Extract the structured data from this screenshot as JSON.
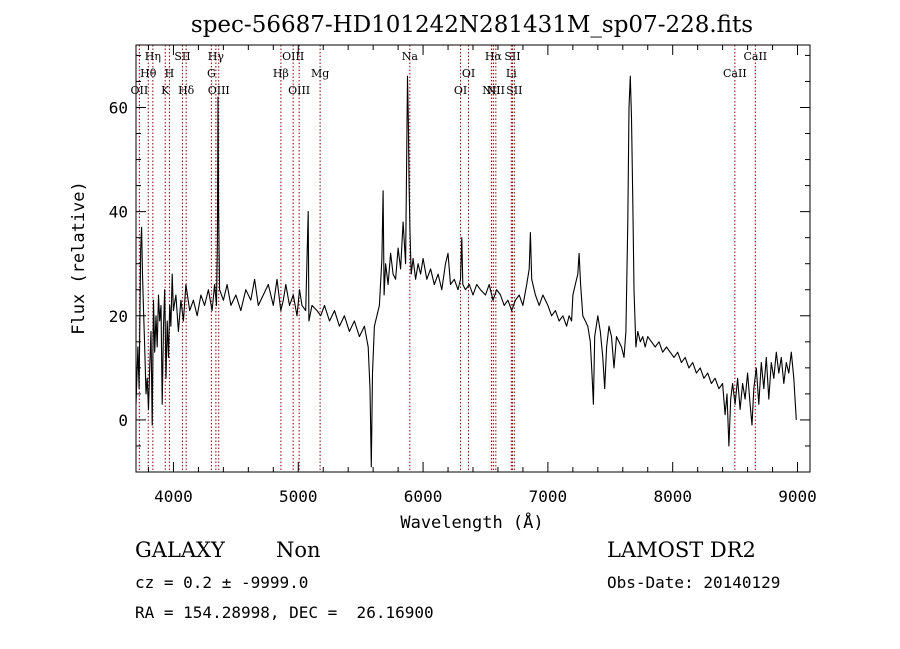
{
  "chart_data": {
    "type": "line",
    "title": "spec-56687-HD101242N281431M_sp07-228.fits",
    "xlabel": "Wavelength (Å)",
    "ylabel": "Flux (relative)",
    "xlim": [
      3700,
      9100
    ],
    "ylim": [
      -10,
      72
    ],
    "xticks": [
      4000,
      5000,
      6000,
      7000,
      8000,
      9000
    ],
    "yticks": [
      0,
      20,
      40,
      60
    ],
    "grid": false,
    "legend": "none",
    "line_color": "#000000",
    "marker_color": "#8b0000",
    "series": [
      {
        "values": [
          [
            3700,
            3
          ],
          [
            3715,
            14
          ],
          [
            3725,
            6
          ],
          [
            3738,
            33
          ],
          [
            3745,
            37
          ],
          [
            3752,
            28
          ],
          [
            3762,
            20
          ],
          [
            3770,
            14
          ],
          [
            3780,
            5
          ],
          [
            3790,
            8
          ],
          [
            3800,
            2
          ],
          [
            3810,
            10
          ],
          [
            3820,
            17
          ],
          [
            3830,
            -1
          ],
          [
            3840,
            23
          ],
          [
            3850,
            13
          ],
          [
            3860,
            20
          ],
          [
            3870,
            14
          ],
          [
            3880,
            24
          ],
          [
            3890,
            19
          ],
          [
            3900,
            22
          ],
          [
            3910,
            3
          ],
          [
            3920,
            18
          ],
          [
            3930,
            25
          ],
          [
            3940,
            8
          ],
          [
            3950,
            19
          ],
          [
            3960,
            12
          ],
          [
            3970,
            22
          ],
          [
            3980,
            18
          ],
          [
            3990,
            28
          ],
          [
            4000,
            21
          ],
          [
            4020,
            24
          ],
          [
            4040,
            17
          ],
          [
            4060,
            23
          ],
          [
            4080,
            19
          ],
          [
            4100,
            26
          ],
          [
            4130,
            21
          ],
          [
            4160,
            23
          ],
          [
            4190,
            20
          ],
          [
            4220,
            24
          ],
          [
            4250,
            22
          ],
          [
            4280,
            25
          ],
          [
            4310,
            21
          ],
          [
            4330,
            26
          ],
          [
            4345,
            22
          ],
          [
            4352,
            34
          ],
          [
            4357,
            62
          ],
          [
            4362,
            40
          ],
          [
            4370,
            25
          ],
          [
            4400,
            23
          ],
          [
            4430,
            26
          ],
          [
            4460,
            22
          ],
          [
            4500,
            24
          ],
          [
            4540,
            21
          ],
          [
            4580,
            25
          ],
          [
            4620,
            23
          ],
          [
            4650,
            27
          ],
          [
            4680,
            22
          ],
          [
            4720,
            24
          ],
          [
            4760,
            26
          ],
          [
            4800,
            22
          ],
          [
            4830,
            27
          ],
          [
            4860,
            21
          ],
          [
            4880,
            23
          ],
          [
            4900,
            26
          ],
          [
            4930,
            22
          ],
          [
            4960,
            24
          ],
          [
            4990,
            20
          ],
          [
            5010,
            25
          ],
          [
            5030,
            22
          ],
          [
            5060,
            21
          ],
          [
            5080,
            40
          ],
          [
            5085,
            19
          ],
          [
            5110,
            22
          ],
          [
            5150,
            21
          ],
          [
            5180,
            20
          ],
          [
            5210,
            22
          ],
          [
            5250,
            19
          ],
          [
            5290,
            21
          ],
          [
            5330,
            18
          ],
          [
            5370,
            20
          ],
          [
            5410,
            17
          ],
          [
            5450,
            19
          ],
          [
            5490,
            16
          ],
          [
            5530,
            18
          ],
          [
            5560,
            14
          ],
          [
            5575,
            6
          ],
          [
            5585,
            -9
          ],
          [
            5595,
            9
          ],
          [
            5610,
            18
          ],
          [
            5630,
            20
          ],
          [
            5650,
            22
          ],
          [
            5670,
            31
          ],
          [
            5680,
            44
          ],
          [
            5688,
            24
          ],
          [
            5700,
            30
          ],
          [
            5720,
            26
          ],
          [
            5740,
            32
          ],
          [
            5760,
            28
          ],
          [
            5780,
            27
          ],
          [
            5800,
            33
          ],
          [
            5820,
            29
          ],
          [
            5840,
            38
          ],
          [
            5860,
            30
          ],
          [
            5875,
            66
          ],
          [
            5882,
            58
          ],
          [
            5888,
            45
          ],
          [
            5895,
            36
          ],
          [
            5905,
            28
          ],
          [
            5920,
            31
          ],
          [
            5940,
            27
          ],
          [
            5960,
            30
          ],
          [
            5980,
            28
          ],
          [
            6000,
            31
          ],
          [
            6030,
            27
          ],
          [
            6060,
            29
          ],
          [
            6090,
            26
          ],
          [
            6120,
            28
          ],
          [
            6150,
            25
          ],
          [
            6180,
            30
          ],
          [
            6200,
            32
          ],
          [
            6220,
            26
          ],
          [
            6250,
            27
          ],
          [
            6280,
            25
          ],
          [
            6300,
            27
          ],
          [
            6310,
            35
          ],
          [
            6318,
            26
          ],
          [
            6340,
            25
          ],
          [
            6370,
            26
          ],
          [
            6400,
            24
          ],
          [
            6430,
            26
          ],
          [
            6460,
            25
          ],
          [
            6500,
            24
          ],
          [
            6530,
            26
          ],
          [
            6560,
            23
          ],
          [
            6590,
            25
          ],
          [
            6620,
            24
          ],
          [
            6650,
            22
          ],
          [
            6680,
            23
          ],
          [
            6710,
            21
          ],
          [
            6740,
            23
          ],
          [
            6770,
            24
          ],
          [
            6800,
            22
          ],
          [
            6830,
            26
          ],
          [
            6850,
            29
          ],
          [
            6860,
            36
          ],
          [
            6870,
            27
          ],
          [
            6900,
            24
          ],
          [
            6930,
            22
          ],
          [
            6960,
            24
          ],
          [
            7000,
            22
          ],
          [
            7030,
            20
          ],
          [
            7060,
            21
          ],
          [
            7090,
            19
          ],
          [
            7120,
            20
          ],
          [
            7150,
            18
          ],
          [
            7170,
            20
          ],
          [
            7190,
            19
          ],
          [
            7200,
            24
          ],
          [
            7220,
            26
          ],
          [
            7240,
            28
          ],
          [
            7250,
            32
          ],
          [
            7262,
            26
          ],
          [
            7280,
            20
          ],
          [
            7300,
            19
          ],
          [
            7320,
            18
          ],
          [
            7340,
            15
          ],
          [
            7355,
            8
          ],
          [
            7365,
            3
          ],
          [
            7375,
            16
          ],
          [
            7400,
            20
          ],
          [
            7420,
            17
          ],
          [
            7440,
            12
          ],
          [
            7455,
            6
          ],
          [
            7470,
            14
          ],
          [
            7490,
            18
          ],
          [
            7510,
            16
          ],
          [
            7530,
            10
          ],
          [
            7550,
            16
          ],
          [
            7570,
            15
          ],
          [
            7590,
            14
          ],
          [
            7610,
            12
          ],
          [
            7625,
            17
          ],
          [
            7640,
            38
          ],
          [
            7650,
            60
          ],
          [
            7660,
            66
          ],
          [
            7670,
            58
          ],
          [
            7680,
            42
          ],
          [
            7690,
            25
          ],
          [
            7705,
            14
          ],
          [
            7720,
            17
          ],
          [
            7740,
            15
          ],
          [
            7760,
            16
          ],
          [
            7780,
            14
          ],
          [
            7800,
            16
          ],
          [
            7830,
            15
          ],
          [
            7860,
            14
          ],
          [
            7890,
            15
          ],
          [
            7920,
            13
          ],
          [
            7950,
            14
          ],
          [
            7980,
            13
          ],
          [
            8010,
            12
          ],
          [
            8040,
            13
          ],
          [
            8070,
            11
          ],
          [
            8100,
            12
          ],
          [
            8130,
            10
          ],
          [
            8160,
            11
          ],
          [
            8190,
            9
          ],
          [
            8220,
            10
          ],
          [
            8250,
            8
          ],
          [
            8280,
            9
          ],
          [
            8310,
            7
          ],
          [
            8340,
            8
          ],
          [
            8370,
            6
          ],
          [
            8400,
            7
          ],
          [
            8420,
            1
          ],
          [
            8435,
            5
          ],
          [
            8450,
            -5
          ],
          [
            8465,
            4
          ],
          [
            8480,
            7
          ],
          [
            8500,
            3
          ],
          [
            8520,
            8
          ],
          [
            8540,
            2
          ],
          [
            8560,
            7
          ],
          [
            8580,
            4
          ],
          [
            8600,
            9
          ],
          [
            8620,
            3
          ],
          [
            8635,
            -1
          ],
          [
            8650,
            6
          ],
          [
            8670,
            10
          ],
          [
            8690,
            3
          ],
          [
            8710,
            11
          ],
          [
            8730,
            6
          ],
          [
            8750,
            12
          ],
          [
            8770,
            4
          ],
          [
            8790,
            11
          ],
          [
            8810,
            8
          ],
          [
            8830,
            13
          ],
          [
            8850,
            9
          ],
          [
            8870,
            12
          ],
          [
            8890,
            7
          ],
          [
            8910,
            11
          ],
          [
            8930,
            9
          ],
          [
            8950,
            13
          ],
          [
            8970,
            8
          ],
          [
            8990,
            0
          ]
        ]
      }
    ],
    "lines": [
      {
        "wavelength": 3727,
        "label": "OII",
        "tier": 3
      },
      {
        "wavelength": 3798,
        "label": "Hθ",
        "tier": 2
      },
      {
        "wavelength": 3835,
        "label": "Hη",
        "tier": 1
      },
      {
        "wavelength": 3934,
        "label": "K",
        "tier": 3
      },
      {
        "wavelength": 3968,
        "label": "H",
        "tier": 2
      },
      {
        "wavelength": 4072,
        "label": "SII",
        "tier": 1
      },
      {
        "wavelength": 4102,
        "label": "Hδ",
        "tier": 3
      },
      {
        "wavelength": 4304,
        "label": "G",
        "tier": 2
      },
      {
        "wavelength": 4340,
        "label": "Hγ",
        "tier": 1
      },
      {
        "wavelength": 4363,
        "label": "OIII",
        "tier": 3
      },
      {
        "wavelength": 4861,
        "label": "Hβ",
        "tier": 2
      },
      {
        "wavelength": 4959,
        "label": "OIII",
        "tier": 1
      },
      {
        "wavelength": 5007,
        "label": "OIII",
        "tier": 3
      },
      {
        "wavelength": 5175,
        "label": "Mg",
        "tier": 2
      },
      {
        "wavelength": 5894,
        "label": "Na",
        "tier": 1
      },
      {
        "wavelength": 6300,
        "label": "OI",
        "tier": 3
      },
      {
        "wavelength": 6364,
        "label": "OI",
        "tier": 2
      },
      {
        "wavelength": 6548,
        "label": "NII",
        "tier": 3
      },
      {
        "wavelength": 6563,
        "label": "Hα",
        "tier": 1
      },
      {
        "wavelength": 6583,
        "label": "NII",
        "tier": 3
      },
      {
        "wavelength": 6707,
        "label": "Li",
        "tier": 2
      },
      {
        "wavelength": 6716,
        "label": "SII",
        "tier": 1
      },
      {
        "wavelength": 6731,
        "label": "SII",
        "tier": 3
      },
      {
        "wavelength": 8498,
        "label": "CaII",
        "tier": 2
      },
      {
        "wavelength": 8662,
        "label": "CaII",
        "tier": 1
      }
    ]
  },
  "info": {
    "class_label": "GALAXY",
    "subclass_label": "Non",
    "cz_text": "cz = 0.2 ± -9999.0",
    "coords_text": "RA = 154.28998, DEC =  26.16900",
    "survey": "LAMOST DR2",
    "obs_date": "Obs-Date: 20140129"
  }
}
